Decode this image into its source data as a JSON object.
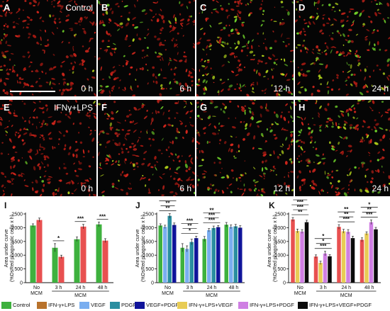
{
  "micrographs": [
    {
      "letter": "A",
      "time": "0 h",
      "condition": "Control",
      "scalebar": true
    },
    {
      "letter": "B",
      "time": "6 h"
    },
    {
      "letter": "C",
      "time": "12 h"
    },
    {
      "letter": "D",
      "time": "24 h"
    },
    {
      "letter": "E",
      "time": "0 h",
      "condition": "IFNγ+LPS"
    },
    {
      "letter": "F",
      "time": "6 h"
    },
    {
      "letter": "G",
      "time": "12 h"
    },
    {
      "letter": "H",
      "time": "24 h"
    }
  ],
  "legend": [
    {
      "label": "Control",
      "color": "#3eb13e"
    },
    {
      "label": "IFN-γ+LPS",
      "color": "#b8722b"
    },
    {
      "label": "VEGF",
      "color": "#7aaef0"
    },
    {
      "label": "PDGF",
      "color": "#2a8ea0"
    },
    {
      "label": "VEGF+PDGF",
      "color": "#10149a"
    },
    {
      "label": "IFN-γ+LPS+VEGF",
      "color": "#e8cc55"
    },
    {
      "label": "IFN-γ+LPS+PDGF",
      "color": "#cf7fe3"
    },
    {
      "label": "IFN-γ+LPS+VEGF+PDGF",
      "color": "#0a0a0a"
    }
  ],
  "chart_data": [
    {
      "panel": "I",
      "type": "bar",
      "ylabel": "Area under curve",
      "ylabel2": "(%DsRed phagocytic cells x h)",
      "ylim": [
        0,
        2500
      ],
      "yticks": [
        0,
        500,
        1000,
        1500,
        2000,
        2500
      ],
      "categories": [
        "No MCM",
        "3 h",
        "24 h",
        "48 h"
      ],
      "series": [
        {
          "name": "Control",
          "color": "#3eb13e",
          "values": [
            2080,
            1270,
            1580,
            2120
          ],
          "errors": [
            60,
            150,
            80,
            80
          ]
        },
        {
          "name": "IFN-γ+LPS",
          "color": "#e85050",
          "values": [
            2280,
            940,
            2040,
            1530
          ],
          "errors": [
            70,
            60,
            80,
            70
          ]
        }
      ],
      "significance": [
        {
          "label": "*",
          "category": "3 h"
        },
        {
          "label": "***",
          "category": "24 h"
        },
        {
          "label": "***",
          "category": "48 h"
        }
      ]
    },
    {
      "panel": "J",
      "type": "bar",
      "ylabel": "Area under curve",
      "ylabel2": "(%DsRed phagocytic cells x h)",
      "ylim": [
        0,
        2500
      ],
      "yticks": [
        0,
        500,
        1000,
        1500,
        2000,
        2500
      ],
      "categories": [
        "No MCM",
        "3 h",
        "24 h",
        "48 h"
      ],
      "series": [
        {
          "name": "Control",
          "color": "#3eb13e",
          "values": [
            2080,
            1270,
            1590,
            2110
          ],
          "errors": [
            60,
            150,
            90,
            80
          ]
        },
        {
          "name": "VEGF",
          "color": "#7aaef0",
          "values": [
            2030,
            1230,
            1910,
            2030
          ],
          "errors": [
            60,
            110,
            60,
            70
          ]
        },
        {
          "name": "PDGF",
          "color": "#2a8ea0",
          "values": [
            2430,
            1480,
            1990,
            2050
          ],
          "errors": [
            80,
            100,
            70,
            70
          ]
        },
        {
          "name": "VEGF+PDGF",
          "color": "#10149a",
          "values": [
            2100,
            1620,
            2020,
            2000
          ],
          "errors": [
            70,
            70,
            60,
            70
          ]
        }
      ],
      "significance": [
        {
          "label": "**",
          "category": "No MCM"
        },
        {
          "label": "**",
          "category": "No MCM"
        },
        {
          "label": "***",
          "category": "No MCM"
        },
        {
          "label": "*",
          "category": "3 h"
        },
        {
          "label": "**",
          "category": "3 h"
        },
        {
          "label": "***",
          "category": "3 h"
        },
        {
          "label": "***",
          "category": "24 h"
        },
        {
          "label": "***",
          "category": "24 h"
        },
        {
          "label": "**",
          "category": "24 h"
        }
      ]
    },
    {
      "panel": "K",
      "type": "bar",
      "ylabel": "Area under curve",
      "ylabel2": "(%DsRed phagocytic cells x h)",
      "ylim": [
        0,
        2500
      ],
      "yticks": [
        0,
        500,
        1000,
        1500,
        2000,
        2500
      ],
      "categories": [
        "No MCM",
        "3 h",
        "24 h",
        "48 h"
      ],
      "series": [
        {
          "name": "IFN-γ+LPS",
          "color": "#e85050",
          "values": [
            2300,
            950,
            2030,
            1560
          ],
          "errors": [
            70,
            60,
            80,
            70
          ]
        },
        {
          "name": "IFN-γ+LPS+VEGF",
          "color": "#e8cc55",
          "values": [
            1880,
            720,
            1870,
            1790
          ],
          "errors": [
            70,
            60,
            70,
            60
          ]
        },
        {
          "name": "IFN-γ+LPS+PDGF",
          "color": "#cf7fe3",
          "values": [
            1860,
            1060,
            1850,
            2200
          ],
          "errors": [
            70,
            80,
            80,
            80
          ]
        },
        {
          "name": "IFN-γ+LPS+VEGF+PDGF",
          "color": "#0a0a0a",
          "values": [
            2200,
            960,
            1620,
            1940
          ],
          "errors": [
            70,
            60,
            70,
            70
          ]
        }
      ],
      "significance": [
        {
          "label": "**",
          "category": "No MCM"
        },
        {
          "label": "***",
          "category": "No MCM"
        },
        {
          "label": "***",
          "category": "No MCM"
        },
        {
          "label": "**",
          "category": "No MCM"
        },
        {
          "label": "***",
          "category": "3 h"
        },
        {
          "label": "*",
          "category": "3 h"
        },
        {
          "label": "*",
          "category": "3 h"
        },
        {
          "label": "***",
          "category": "24 h"
        },
        {
          "label": "**",
          "category": "24 h"
        },
        {
          "label": "**",
          "category": "24 h"
        },
        {
          "label": "***",
          "category": "48 h"
        },
        {
          "label": "**",
          "category": "48 h"
        },
        {
          "label": "*",
          "category": "48 h"
        }
      ]
    }
  ]
}
